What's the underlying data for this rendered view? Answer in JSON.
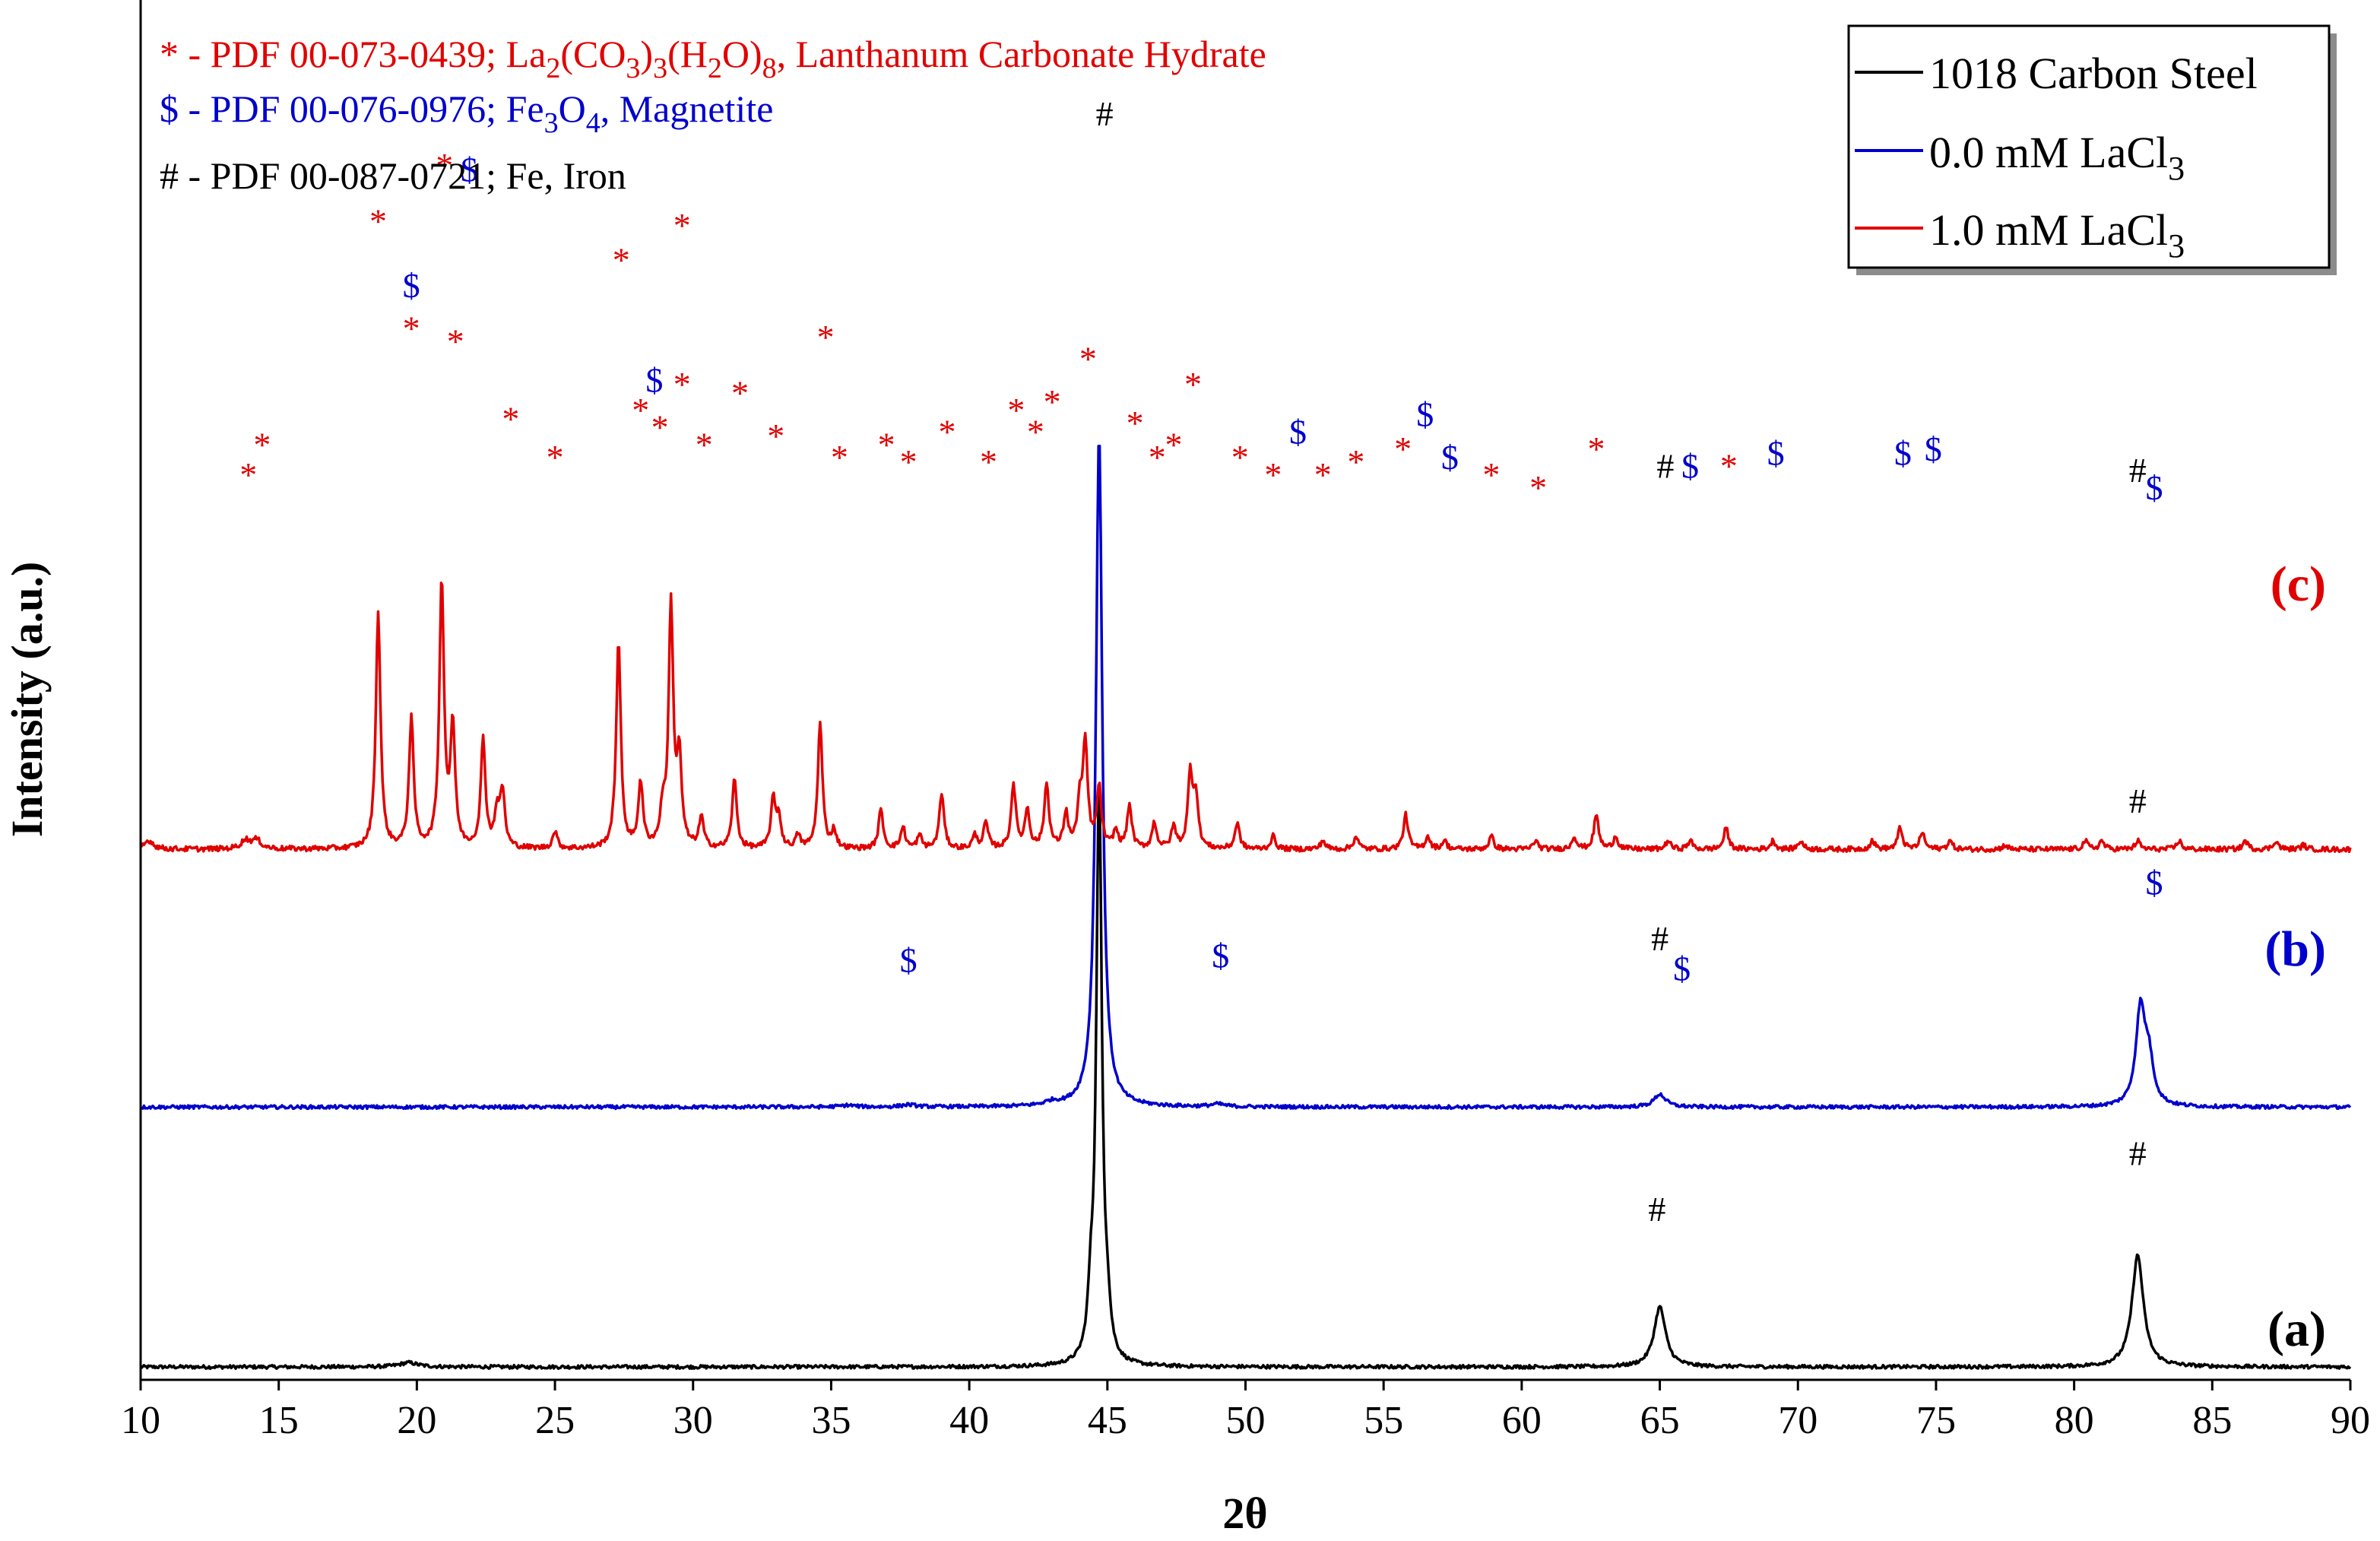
{
  "chart_data": {
    "type": "line",
    "xlabel": "2θ",
    "ylabel": "Intensity (a.u.)",
    "xlim": [
      10,
      90
    ],
    "x_ticks": [
      "10",
      "15",
      "20",
      "25",
      "30",
      "35",
      "40",
      "45",
      "50",
      "55",
      "60",
      "65",
      "70",
      "75",
      "80",
      "85",
      "90"
    ],
    "y_ticks_shown": false,
    "grid": false,
    "legend_position": "top-right",
    "legend": [
      {
        "label": "1018 Carbon Steel",
        "color": "#000000"
      },
      {
        "label": "0.0 mM LaCl3",
        "color": "#0000cc"
      },
      {
        "label": "1.0 mM LaCl3",
        "color": "#e00000"
      }
    ],
    "reference_notes": [
      {
        "symbol": "*",
        "text": "- PDF 00-073-0439; La2(CO3)3(H2O)8, Lanthanum Carbonate Hydrate",
        "color": "#e00000"
      },
      {
        "symbol": "$",
        "text": "- PDF 00-076-0976; Fe3O4, Magnetite",
        "color": "#0000cc"
      },
      {
        "symbol": "#",
        "text": "- PDF 00-087-0721; Fe, Iron",
        "color": "#000000"
      }
    ],
    "series": [
      {
        "name": "1018 Carbon Steel",
        "pattern_label": "(a)",
        "color": "#000000",
        "baseline": 0.03,
        "peaks": [
          [
            19.7,
            0.01,
            0.4
          ],
          [
            44.4,
            0.12,
            0.12
          ],
          [
            44.7,
            1.35,
            0.12
          ],
          [
            45.0,
            0.08,
            0.12
          ],
          [
            65.0,
            0.14,
            0.25
          ],
          [
            82.3,
            0.26,
            0.25
          ]
        ]
      },
      {
        "name": "0.0 mM LaCl3",
        "pattern_label": "(b)",
        "color": "#0000cc",
        "baseline": 0.635,
        "peaks": [
          [
            35.6,
            0.004,
            0.3
          ],
          [
            37.8,
            0.005,
            0.3
          ],
          [
            43.0,
            0.008,
            0.3
          ],
          [
            44.7,
            1.57,
            0.14
          ],
          [
            49.0,
            0.006,
            0.3
          ],
          [
            65.0,
            0.03,
            0.25
          ],
          [
            82.4,
            0.22,
            0.2
          ],
          [
            82.7,
            0.1,
            0.2
          ]
        ]
      },
      {
        "name": "1.0 mM LaCl3",
        "pattern_label": "(c)",
        "color": "#e00000",
        "baseline": 1.235,
        "peaks": [
          [
            10.3,
            0.02,
            0.2
          ],
          [
            13.8,
            0.02,
            0.2
          ],
          [
            14.2,
            0.02,
            0.2
          ],
          [
            18.6,
            0.55,
            0.1
          ],
          [
            19.8,
            0.3,
            0.1
          ],
          [
            20.9,
            0.62,
            0.1
          ],
          [
            21.3,
            0.28,
            0.1
          ],
          [
            22.4,
            0.25,
            0.1
          ],
          [
            22.9,
            0.08,
            0.1
          ],
          [
            23.1,
            0.13,
            0.1
          ],
          [
            25.0,
            0.04,
            0.1
          ],
          [
            27.3,
            0.48,
            0.1
          ],
          [
            28.1,
            0.15,
            0.1
          ],
          [
            28.9,
            0.08,
            0.1
          ],
          [
            29.2,
            0.56,
            0.1
          ],
          [
            29.5,
            0.2,
            0.1
          ],
          [
            30.3,
            0.07,
            0.1
          ],
          [
            31.5,
            0.16,
            0.1
          ],
          [
            32.9,
            0.11,
            0.1
          ],
          [
            33.1,
            0.07,
            0.1
          ],
          [
            33.8,
            0.03,
            0.1
          ],
          [
            34.6,
            0.29,
            0.1
          ],
          [
            35.1,
            0.04,
            0.1
          ],
          [
            36.8,
            0.09,
            0.1
          ],
          [
            37.6,
            0.05,
            0.1
          ],
          [
            38.2,
            0.03,
            0.1
          ],
          [
            39.0,
            0.13,
            0.1
          ],
          [
            40.2,
            0.03,
            0.1
          ],
          [
            40.6,
            0.06,
            0.1
          ],
          [
            41.6,
            0.15,
            0.1
          ],
          [
            42.1,
            0.09,
            0.1
          ],
          [
            42.8,
            0.15,
            0.1
          ],
          [
            43.5,
            0.08,
            0.1
          ],
          [
            44.0,
            0.1,
            0.1
          ],
          [
            44.2,
            0.24,
            0.1
          ],
          [
            44.7,
            0.14,
            0.1
          ],
          [
            45.3,
            0.04,
            0.1
          ],
          [
            45.8,
            0.1,
            0.1
          ],
          [
            46.7,
            0.06,
            0.1
          ],
          [
            47.4,
            0.05,
            0.1
          ],
          [
            48.0,
            0.17,
            0.1
          ],
          [
            48.2,
            0.12,
            0.1
          ],
          [
            49.7,
            0.06,
            0.1
          ],
          [
            51.0,
            0.03,
            0.1
          ],
          [
            52.8,
            0.02,
            0.1
          ],
          [
            54.0,
            0.03,
            0.1
          ],
          [
            55.8,
            0.08,
            0.1
          ],
          [
            56.6,
            0.03,
            0.1
          ],
          [
            57.2,
            0.02,
            0.1
          ],
          [
            58.9,
            0.03,
            0.1
          ],
          [
            60.5,
            0.02,
            0.1
          ],
          [
            61.9,
            0.03,
            0.1
          ],
          [
            62.7,
            0.08,
            0.1
          ],
          [
            63.4,
            0.03,
            0.1
          ],
          [
            65.3,
            0.02,
            0.1
          ],
          [
            66.1,
            0.02,
            0.1
          ],
          [
            67.4,
            0.05,
            0.1
          ],
          [
            69.1,
            0.02,
            0.1
          ],
          [
            70.1,
            0.02,
            0.1
          ],
          [
            72.7,
            0.02,
            0.1
          ],
          [
            73.7,
            0.05,
            0.1
          ],
          [
            74.5,
            0.04,
            0.1
          ],
          [
            75.5,
            0.02,
            0.1
          ],
          [
            77.5,
            0.01,
            0.1
          ],
          [
            80.4,
            0.02,
            0.1
          ],
          [
            81.0,
            0.02,
            0.1
          ],
          [
            82.3,
            0.02,
            0.1
          ],
          [
            83.8,
            0.02,
            0.1
          ],
          [
            86.2,
            0.02,
            0.1
          ],
          [
            87.3,
            0.02,
            0.1
          ],
          [
            88.3,
            0.01,
            0.1
          ]
        ]
      }
    ],
    "markers": [
      {
        "x": 44.9,
        "level": 2.92,
        "symbol": "#",
        "color": "#000000"
      },
      {
        "x": 13.9,
        "level": 2.08,
        "symbol": "*",
        "color": "#e00000"
      },
      {
        "x": 14.4,
        "level": 2.15,
        "symbol": "*",
        "color": "#e00000"
      },
      {
        "x": 18.6,
        "level": 2.67,
        "symbol": "*",
        "color": "#e00000"
      },
      {
        "x": 19.8,
        "level": 2.42,
        "symbol": "*",
        "color": "#e00000"
      },
      {
        "x": 19.8,
        "level": 2.52,
        "symbol": "$",
        "color": "#0000cc"
      },
      {
        "x": 21.0,
        "level": 2.8,
        "symbol": "*",
        "color": "#e00000"
      },
      {
        "x": 21.9,
        "level": 2.79,
        "symbol": "$",
        "color": "#0000cc"
      },
      {
        "x": 21.4,
        "level": 2.39,
        "symbol": "*",
        "color": "#e00000"
      },
      {
        "x": 23.4,
        "level": 2.21,
        "symbol": "*",
        "color": "#e00000"
      },
      {
        "x": 25.0,
        "level": 2.12,
        "symbol": "*",
        "color": "#e00000"
      },
      {
        "x": 27.4,
        "level": 2.58,
        "symbol": "*",
        "color": "#e00000"
      },
      {
        "x": 28.1,
        "level": 2.23,
        "symbol": "*",
        "color": "#e00000"
      },
      {
        "x": 28.6,
        "level": 2.3,
        "symbol": "$",
        "color": "#0000cc"
      },
      {
        "x": 28.8,
        "level": 2.19,
        "symbol": "*",
        "color": "#e00000"
      },
      {
        "x": 29.6,
        "level": 2.29,
        "symbol": "*",
        "color": "#e00000"
      },
      {
        "x": 29.6,
        "level": 2.66,
        "symbol": "*",
        "color": "#e00000"
      },
      {
        "x": 30.4,
        "level": 2.15,
        "symbol": "*",
        "color": "#e00000"
      },
      {
        "x": 31.7,
        "level": 2.27,
        "symbol": "*",
        "color": "#e00000"
      },
      {
        "x": 33.0,
        "level": 2.17,
        "symbol": "*",
        "color": "#e00000"
      },
      {
        "x": 34.8,
        "level": 2.4,
        "symbol": "*",
        "color": "#e00000"
      },
      {
        "x": 35.3,
        "level": 2.12,
        "symbol": "*",
        "color": "#e00000"
      },
      {
        "x": 37.0,
        "level": 2.15,
        "symbol": "*",
        "color": "#e00000"
      },
      {
        "x": 37.8,
        "level": 2.11,
        "symbol": "*",
        "color": "#e00000"
      },
      {
        "x": 39.2,
        "level": 2.18,
        "symbol": "*",
        "color": "#e00000"
      },
      {
        "x": 40.7,
        "level": 2.11,
        "symbol": "*",
        "color": "#e00000"
      },
      {
        "x": 41.7,
        "level": 2.23,
        "symbol": "*",
        "color": "#e00000"
      },
      {
        "x": 42.4,
        "level": 2.18,
        "symbol": "*",
        "color": "#e00000"
      },
      {
        "x": 43.0,
        "level": 2.25,
        "symbol": "*",
        "color": "#e00000"
      },
      {
        "x": 44.3,
        "level": 2.35,
        "symbol": "*",
        "color": "#e00000"
      },
      {
        "x": 46.0,
        "level": 2.2,
        "symbol": "*",
        "color": "#e00000"
      },
      {
        "x": 46.8,
        "level": 2.12,
        "symbol": "*",
        "color": "#e00000"
      },
      {
        "x": 47.4,
        "level": 2.15,
        "symbol": "*",
        "color": "#e00000"
      },
      {
        "x": 48.1,
        "level": 2.29,
        "symbol": "*",
        "color": "#e00000"
      },
      {
        "x": 49.8,
        "level": 2.12,
        "symbol": "*",
        "color": "#e00000"
      },
      {
        "x": 51.0,
        "level": 2.08,
        "symbol": "*",
        "color": "#e00000"
      },
      {
        "x": 51.9,
        "level": 2.18,
        "symbol": "$",
        "color": "#0000cc"
      },
      {
        "x": 52.8,
        "level": 2.08,
        "symbol": "*",
        "color": "#e00000"
      },
      {
        "x": 54.0,
        "level": 2.11,
        "symbol": "*",
        "color": "#e00000"
      },
      {
        "x": 55.7,
        "level": 2.14,
        "symbol": "*",
        "color": "#e00000"
      },
      {
        "x": 56.5,
        "level": 2.22,
        "symbol": "$",
        "color": "#0000cc"
      },
      {
        "x": 57.4,
        "level": 2.12,
        "symbol": "$",
        "color": "#0000cc"
      },
      {
        "x": 58.9,
        "level": 2.08,
        "symbol": "*",
        "color": "#e00000"
      },
      {
        "x": 60.6,
        "level": 2.05,
        "symbol": "*",
        "color": "#e00000"
      },
      {
        "x": 62.7,
        "level": 2.14,
        "symbol": "*",
        "color": "#e00000"
      },
      {
        "x": 65.2,
        "level": 2.1,
        "symbol": "#",
        "color": "#000000"
      },
      {
        "x": 66.1,
        "level": 2.1,
        "symbol": "$",
        "color": "#0000cc"
      },
      {
        "x": 67.5,
        "level": 2.1,
        "symbol": "*",
        "color": "#e00000"
      },
      {
        "x": 69.2,
        "level": 2.13,
        "symbol": "$",
        "color": "#0000cc"
      },
      {
        "x": 73.8,
        "level": 2.13,
        "symbol": "$",
        "color": "#0000cc"
      },
      {
        "x": 74.9,
        "level": 2.14,
        "symbol": "$",
        "color": "#0000cc"
      },
      {
        "x": 82.3,
        "level": 2.09,
        "symbol": "#",
        "color": "#000000"
      },
      {
        "x": 82.9,
        "level": 2.05,
        "symbol": "$",
        "color": "#0000cc"
      },
      {
        "x": 37.8,
        "level": 0.95,
        "symbol": "$",
        "color": "#0000cc"
      },
      {
        "x": 49.1,
        "level": 0.96,
        "symbol": "$",
        "color": "#0000cc"
      },
      {
        "x": 65.0,
        "level": 1.0,
        "symbol": "#",
        "color": "#000000"
      },
      {
        "x": 65.8,
        "level": 0.93,
        "symbol": "$",
        "color": "#0000cc"
      },
      {
        "x": 82.3,
        "level": 1.32,
        "symbol": "#",
        "color": "#000000"
      },
      {
        "x": 82.9,
        "level": 1.13,
        "symbol": "$",
        "color": "#0000cc"
      },
      {
        "x": 64.9,
        "level": 0.37,
        "symbol": "#",
        "color": "#000000"
      },
      {
        "x": 82.3,
        "level": 0.5,
        "symbol": "#",
        "color": "#000000"
      }
    ]
  }
}
